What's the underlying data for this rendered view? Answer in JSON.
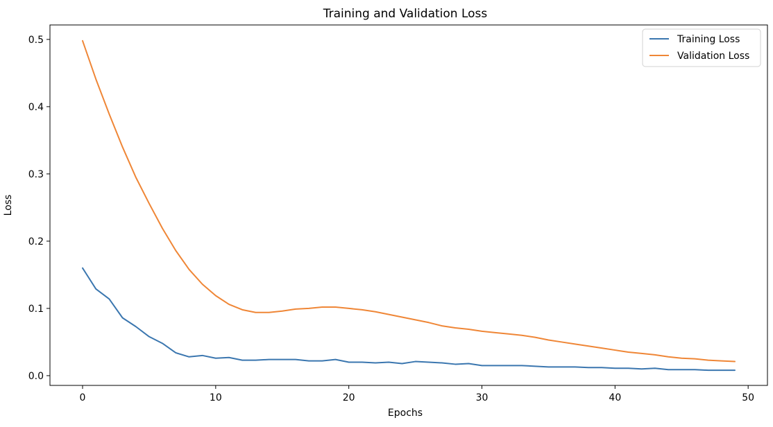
{
  "chart_data": {
    "type": "line",
    "title": "Training and Validation Loss",
    "xlabel": "Epochs",
    "ylabel": "Loss",
    "xlim": [
      -2.45,
      51.45
    ],
    "ylim": [
      -0.0145,
      0.5215
    ],
    "xticks": [
      0,
      10,
      20,
      30,
      40,
      50
    ],
    "yticks": [
      0.0,
      0.1,
      0.2,
      0.3,
      0.4,
      0.5
    ],
    "ytick_labels": [
      "0.0",
      "0.1",
      "0.2",
      "0.3",
      "0.4",
      "0.5"
    ],
    "grid": false,
    "legend_position": "top-right",
    "x": [
      0,
      1,
      2,
      3,
      4,
      5,
      6,
      7,
      8,
      9,
      10,
      11,
      12,
      13,
      14,
      15,
      16,
      17,
      18,
      19,
      20,
      21,
      22,
      23,
      24,
      25,
      26,
      27,
      28,
      29,
      30,
      31,
      32,
      33,
      34,
      35,
      36,
      37,
      38,
      39,
      40,
      41,
      42,
      43,
      44,
      45,
      46,
      47,
      48,
      49
    ],
    "series": [
      {
        "name": "Training Loss",
        "color": "#3a76af",
        "values": [
          0.16,
          0.129,
          0.114,
          0.086,
          0.073,
          0.058,
          0.048,
          0.034,
          0.028,
          0.03,
          0.026,
          0.027,
          0.023,
          0.023,
          0.024,
          0.024,
          0.024,
          0.022,
          0.022,
          0.024,
          0.02,
          0.02,
          0.019,
          0.02,
          0.018,
          0.021,
          0.02,
          0.019,
          0.017,
          0.018,
          0.015,
          0.015,
          0.015,
          0.015,
          0.014,
          0.013,
          0.013,
          0.013,
          0.012,
          0.012,
          0.011,
          0.011,
          0.01,
          0.011,
          0.009,
          0.009,
          0.009,
          0.008,
          0.008,
          0.008
        ]
      },
      {
        "name": "Validation Loss",
        "color": "#ef8636",
        "values": [
          0.498,
          0.441,
          0.389,
          0.34,
          0.295,
          0.256,
          0.219,
          0.186,
          0.158,
          0.136,
          0.119,
          0.106,
          0.098,
          0.094,
          0.094,
          0.096,
          0.099,
          0.1,
          0.102,
          0.102,
          0.1,
          0.098,
          0.095,
          0.091,
          0.087,
          0.083,
          0.079,
          0.074,
          0.071,
          0.069,
          0.066,
          0.064,
          0.062,
          0.06,
          0.057,
          0.053,
          0.05,
          0.047,
          0.044,
          0.041,
          0.038,
          0.035,
          0.033,
          0.031,
          0.028,
          0.026,
          0.025,
          0.023,
          0.022,
          0.021
        ]
      }
    ]
  }
}
